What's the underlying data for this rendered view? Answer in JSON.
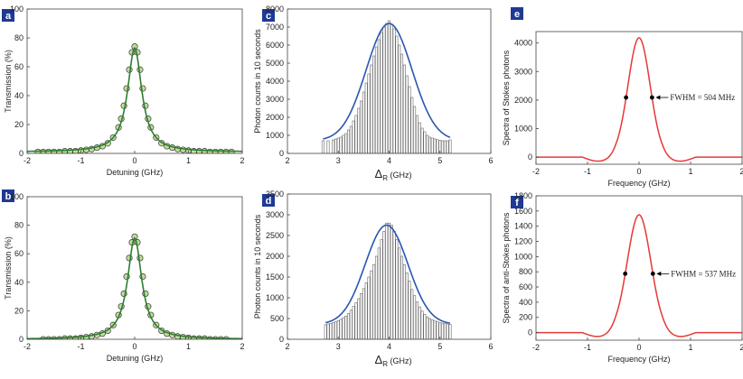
{
  "colors": {
    "fit_green": "#2e7d32",
    "marker_edge": "#333333",
    "marker_fill": "#8bc34a",
    "hist_bar_fill": "#ffffff",
    "hist_bar_edge": "#666666",
    "gauss_blue": "#2a56b0",
    "spectrum_red": "#e53935",
    "dot_black": "#000000",
    "label_box": "#1f3a93"
  },
  "chart_data": [
    {
      "id": "a",
      "panel_label": "a",
      "type": "scatter",
      "title": "",
      "xlabel": "Detuning (GHz)",
      "ylabel": "Transmission (%)",
      "xlim": [
        -2,
        2
      ],
      "ylim": [
        0,
        100
      ],
      "xticks": [
        -2,
        -1,
        0,
        1,
        2
      ],
      "yticks": [
        0,
        20,
        40,
        60,
        80,
        100
      ],
      "series": [
        {
          "kind": "markers",
          "x": [
            -1.8,
            -1.7,
            -1.6,
            -1.5,
            -1.4,
            -1.3,
            -1.2,
            -1.1,
            -1.0,
            -0.9,
            -0.8,
            -0.7,
            -0.6,
            -0.5,
            -0.4,
            -0.3,
            -0.25,
            -0.2,
            -0.15,
            -0.1,
            -0.05,
            0,
            0.05,
            0.1,
            0.15,
            0.2,
            0.25,
            0.3,
            0.4,
            0.5,
            0.6,
            0.7,
            0.8,
            0.9,
            1.0,
            1.1,
            1.2,
            1.3,
            1.4,
            1.5,
            1.6,
            1.7,
            1.8
          ],
          "y": [
            1,
            1,
            1,
            1,
            1,
            1.5,
            1.5,
            1.5,
            2,
            2.5,
            3,
            4,
            5,
            7,
            11,
            18,
            24,
            33,
            45,
            58,
            70,
            74,
            70,
            58,
            45,
            33,
            24,
            18,
            11,
            7,
            5,
            4,
            3,
            2.5,
            2,
            1.5,
            1.5,
            1.5,
            1,
            1,
            1,
            1,
            1
          ]
        },
        {
          "kind": "fit",
          "peak": 73,
          "center": 0,
          "hwhm": 0.16,
          "baseline": 1
        }
      ]
    },
    {
      "id": "b",
      "panel_label": "b",
      "type": "scatter",
      "title": "",
      "xlabel": "Detuning (GHz)",
      "ylabel": "Transmission (%)",
      "xlim": [
        -2,
        2
      ],
      "ylim": [
        0,
        100
      ],
      "xticks": [
        -2,
        -1,
        0,
        1,
        2
      ],
      "yticks": [
        0,
        20,
        40,
        60,
        80,
        100
      ],
      "series": [
        {
          "kind": "markers",
          "x": [
            -1.7,
            -1.6,
            -1.5,
            -1.4,
            -1.3,
            -1.2,
            -1.1,
            -1.0,
            -0.9,
            -0.8,
            -0.7,
            -0.6,
            -0.5,
            -0.4,
            -0.3,
            -0.25,
            -0.2,
            -0.15,
            -0.1,
            -0.05,
            0,
            0.05,
            0.1,
            0.15,
            0.2,
            0.25,
            0.3,
            0.4,
            0.5,
            0.6,
            0.7,
            0.8,
            0.9,
            1.0,
            1.1,
            1.2,
            1.3,
            1.4,
            1.5,
            1.6,
            1.7
          ],
          "y": [
            0,
            0,
            0,
            0,
            0.5,
            0.5,
            0.5,
            1,
            1.5,
            2,
            3,
            4,
            6,
            10,
            17,
            23,
            32,
            44,
            57,
            68,
            72,
            68,
            57,
            44,
            32,
            23,
            17,
            10,
            6,
            4,
            3,
            2,
            1.5,
            1,
            0.5,
            0.5,
            0.5,
            0,
            0,
            0,
            0
          ]
        },
        {
          "kind": "fit",
          "peak": 71,
          "center": 0,
          "hwhm": 0.16,
          "baseline": 0
        }
      ]
    },
    {
      "id": "c",
      "panel_label": "c",
      "type": "bar",
      "title": "",
      "xlabel_main": "Δ",
      "xlabel_sub": "R",
      "xlabel_unit": " (GHz)",
      "ylabel": "Photon counts in 10 seconds",
      "xlim": [
        2,
        6
      ],
      "ylim": [
        0,
        8000
      ],
      "xticks": [
        2,
        3,
        4,
        5,
        6
      ],
      "yticks": [
        0,
        1000,
        2000,
        3000,
        4000,
        5000,
        6000,
        7000,
        8000
      ],
      "bar_width": 0.05,
      "bars_x": [
        2.7,
        2.75,
        2.8,
        2.85,
        2.9,
        2.95,
        3.0,
        3.05,
        3.1,
        3.15,
        3.2,
        3.25,
        3.3,
        3.35,
        3.4,
        3.45,
        3.5,
        3.55,
        3.6,
        3.65,
        3.7,
        3.75,
        3.8,
        3.85,
        3.9,
        3.95,
        4.0,
        4.05,
        4.1,
        4.15,
        4.2,
        4.25,
        4.3,
        4.35,
        4.4,
        4.45,
        4.5,
        4.55,
        4.6,
        4.65,
        4.7,
        4.75,
        4.8,
        4.85,
        4.9,
        4.95,
        5.0,
        5.05,
        5.1,
        5.15,
        5.2
      ],
      "bars_y": [
        700,
        0,
        700,
        0,
        750,
        800,
        850,
        900,
        1000,
        1100,
        1300,
        1500,
        1800,
        2100,
        2500,
        2900,
        3400,
        3900,
        4400,
        4900,
        5400,
        5900,
        6300,
        6700,
        7000,
        7200,
        7350,
        7150,
        6900,
        6500,
        6000,
        5500,
        4900,
        4300,
        3700,
        3100,
        2600,
        2100,
        1700,
        1400,
        1200,
        1000,
        900,
        850,
        800,
        760,
        720,
        700,
        700,
        700,
        750
      ],
      "series": [
        {
          "kind": "gaussian",
          "peak": 7200,
          "center": 4.0,
          "sigma": 0.45,
          "baseline": 700,
          "x_from": 2.7,
          "x_to": 5.2
        }
      ]
    },
    {
      "id": "d",
      "panel_label": "d",
      "type": "bar",
      "title": "",
      "xlabel_main": "Δ",
      "xlabel_sub": "R",
      "xlabel_unit": " (GHz)",
      "ylabel": "Photon counts in 10 seconds",
      "xlim": [
        2,
        6
      ],
      "ylim": [
        0,
        3500
      ],
      "xticks": [
        2,
        3,
        4,
        5,
        6
      ],
      "yticks": [
        0,
        500,
        1000,
        1500,
        2000,
        2500,
        3000,
        3500
      ],
      "bar_width": 0.05,
      "bars_x": [
        2.75,
        2.8,
        2.85,
        2.9,
        2.95,
        3.0,
        3.05,
        3.1,
        3.15,
        3.2,
        3.25,
        3.3,
        3.35,
        3.4,
        3.45,
        3.5,
        3.55,
        3.6,
        3.65,
        3.7,
        3.75,
        3.8,
        3.85,
        3.9,
        3.95,
        4.0,
        4.05,
        4.1,
        4.15,
        4.2,
        4.25,
        4.3,
        4.35,
        4.4,
        4.45,
        4.5,
        4.55,
        4.6,
        4.65,
        4.7,
        4.75,
        4.8,
        4.85,
        4.9,
        4.95,
        5.0,
        5.05,
        5.1,
        5.15,
        5.2
      ],
      "bars_y": [
        350,
        370,
        380,
        400,
        420,
        450,
        480,
        520,
        560,
        620,
        700,
        790,
        880,
        980,
        1100,
        1220,
        1360,
        1500,
        1650,
        1800,
        2000,
        2200,
        2400,
        2600,
        2800,
        2800,
        2750,
        2600,
        2400,
        2200,
        2000,
        1800,
        1600,
        1400,
        1200,
        1050,
        900,
        780,
        680,
        600,
        540,
        500,
        470,
        440,
        420,
        400,
        390,
        380,
        370,
        360
      ],
      "series": [
        {
          "kind": "gaussian",
          "peak": 2750,
          "center": 3.95,
          "sigma": 0.42,
          "baseline": 360,
          "x_from": 2.75,
          "x_to": 5.2
        }
      ]
    },
    {
      "id": "e",
      "panel_label": "e",
      "type": "line",
      "title": "",
      "xlabel": "Frequency (GHz)",
      "ylabel": "Spectra of  Stokes photons",
      "xlim": [
        -2,
        2
      ],
      "ylim": [
        -250,
        4400
      ],
      "xticks": [
        -2,
        -1,
        0,
        1,
        2
      ],
      "yticks": [
        0,
        1000,
        2000,
        3000,
        4000
      ],
      "series": [
        {
          "kind": "spectrum",
          "peak": 4180,
          "center": 0,
          "fwhm": 0.504
        }
      ],
      "annotation": {
        "text": "FWHM = 504 MHz",
        "points_x": [
          -0.252,
          0.252
        ],
        "y": 2090
      }
    },
    {
      "id": "f",
      "panel_label": "f",
      "type": "line",
      "title": "",
      "xlabel": "Frequency (GHz)",
      "ylabel": "Spectra of anti-Stokes photons",
      "xlim": [
        -2,
        2
      ],
      "ylim": [
        -100,
        1800
      ],
      "xticks": [
        -2,
        -1,
        0,
        1,
        2
      ],
      "yticks": [
        0,
        200,
        400,
        600,
        800,
        1000,
        1200,
        1400,
        1600,
        1800
      ],
      "series": [
        {
          "kind": "spectrum",
          "peak": 1550,
          "center": 0,
          "fwhm": 0.537
        }
      ],
      "annotation": {
        "text": "FWHM = 537 MHz",
        "points_x": [
          -0.2685,
          0.2685
        ],
        "y": 775
      }
    }
  ]
}
